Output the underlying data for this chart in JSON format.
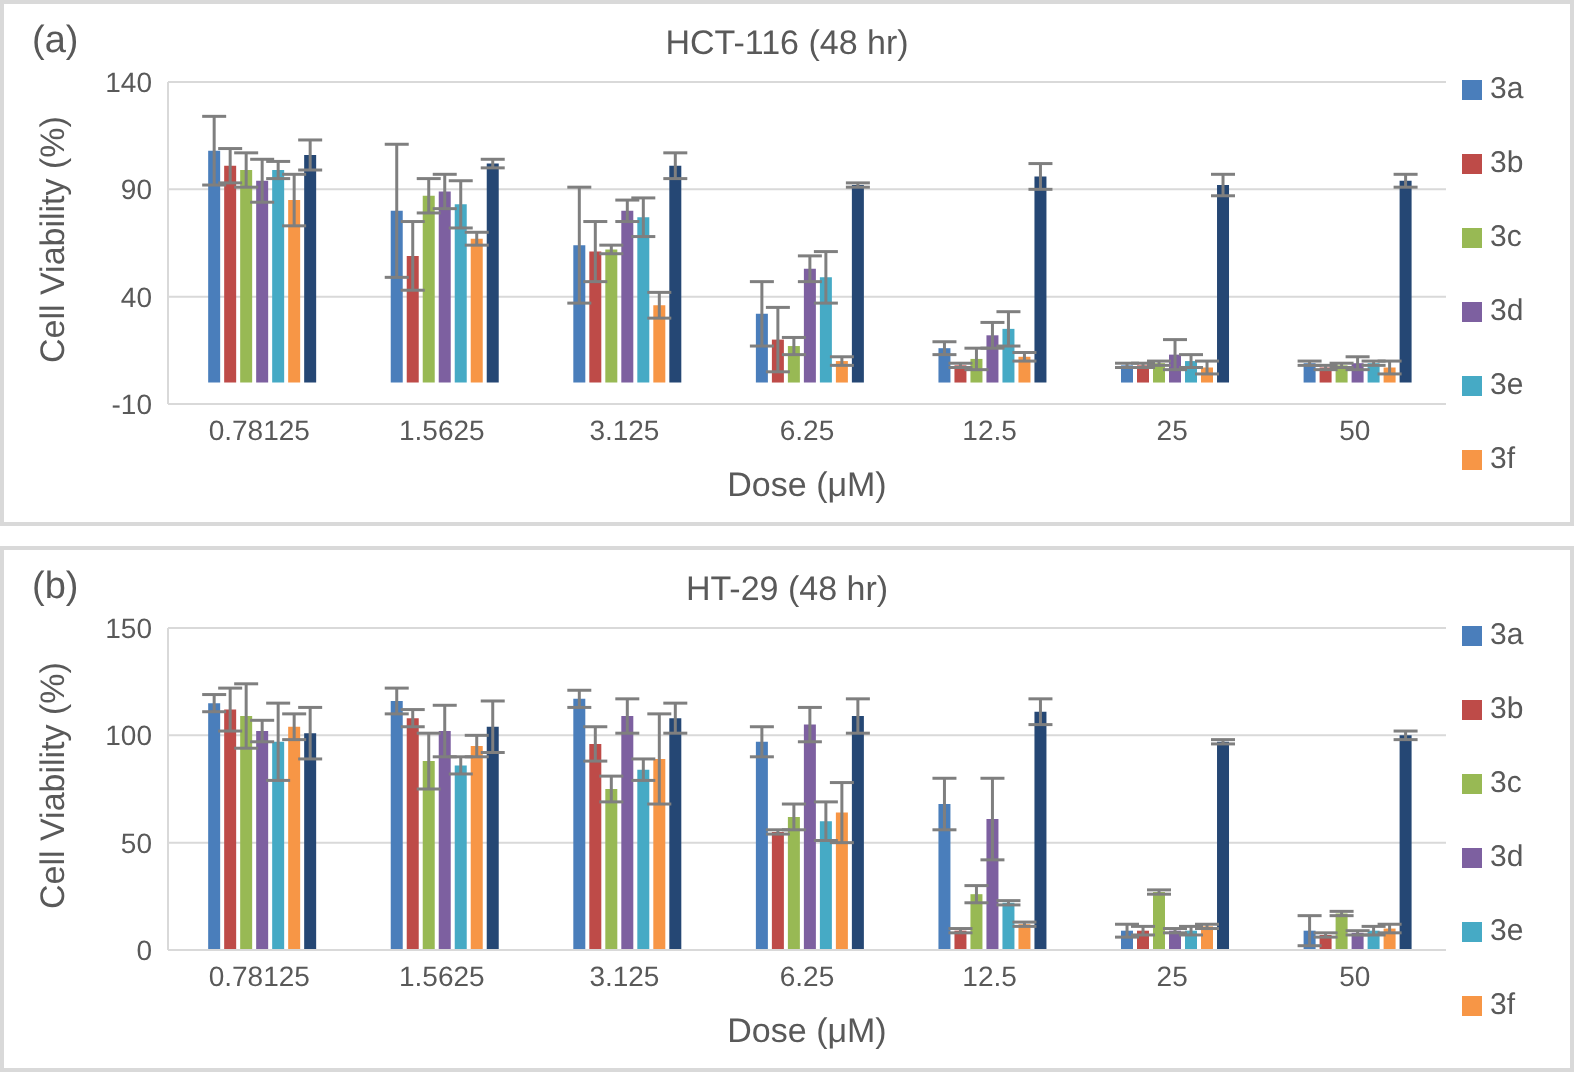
{
  "chart_data": [
    {
      "type": "bar",
      "title": "HCT-116 (48 hr)",
      "xlabel": "Dose (μM)",
      "ylabel": "Cell Viability (%)",
      "annotations": [
        "(a)"
      ],
      "categories": [
        "0.78125",
        "1.5625",
        "3.125",
        "6.25",
        "12.5",
        "25",
        "50"
      ],
      "ylim": [
        -10,
        140
      ],
      "yticks": [
        -10,
        40,
        90,
        140
      ],
      "grid": "y",
      "legend": "right",
      "series": [
        {
          "name": "3a",
          "color": "#4a7ebb",
          "values": [
            108,
            80,
            64,
            32,
            16,
            8,
            9
          ],
          "errors": [
            16,
            31,
            27,
            15,
            3,
            1,
            1
          ]
        },
        {
          "name": "3b",
          "color": "#be4b48",
          "values": [
            101,
            59,
            61,
            20,
            8,
            8,
            7
          ],
          "errors": [
            8,
            16,
            14,
            15,
            1,
            1,
            1
          ]
        },
        {
          "name": "3c",
          "color": "#98b954",
          "values": [
            99,
            87,
            62,
            17,
            11,
            9,
            8
          ],
          "errors": [
            8,
            8,
            2,
            4,
            5,
            1,
            1
          ]
        },
        {
          "name": "3d",
          "color": "#7d60a0",
          "values": [
            94,
            89,
            80,
            53,
            22,
            13,
            9
          ],
          "errors": [
            10,
            8,
            5,
            6,
            6,
            7,
            3
          ]
        },
        {
          "name": "3e",
          "color": "#46aac5",
          "values": [
            99,
            83,
            77,
            49,
            25,
            10,
            9
          ],
          "errors": [
            4,
            11,
            9,
            12,
            8,
            3,
            1
          ]
        },
        {
          "name": "3f",
          "color": "#f79646",
          "values": [
            85,
            67,
            36,
            10,
            12,
            7,
            7
          ],
          "errors": [
            12,
            3,
            6,
            2,
            2,
            3,
            3
          ]
        },
        {
          "color": "#254774",
          "values": [
            106,
            102,
            101,
            92,
            96,
            92,
            94
          ],
          "errors": [
            7,
            2,
            6,
            1,
            6,
            5,
            3
          ]
        }
      ]
    },
    {
      "type": "bar",
      "title": "HT-29 (48 hr)",
      "xlabel": "Dose (μM)",
      "ylabel": "Cell Viability (%)",
      "annotations": [
        "(b)"
      ],
      "categories": [
        "0.78125",
        "1.5625",
        "3.125",
        "6.25",
        "12.5",
        "25",
        "50"
      ],
      "ylim": [
        0,
        150
      ],
      "yticks": [
        0,
        50,
        100,
        150
      ],
      "grid": "y",
      "legend": "right",
      "series": [
        {
          "name": "3a",
          "color": "#4a7ebb",
          "values": [
            115,
            116,
            117,
            97,
            68,
            9,
            9
          ],
          "errors": [
            4,
            6,
            4,
            7,
            12,
            3,
            7
          ]
        },
        {
          "name": "3b",
          "color": "#be4b48",
          "values": [
            112,
            108,
            96,
            55,
            9,
            9,
            7
          ],
          "errors": [
            10,
            4,
            8,
            1,
            1,
            2,
            1
          ]
        },
        {
          "name": "3c",
          "color": "#98b954",
          "values": [
            109,
            88,
            75,
            62,
            26,
            27,
            17
          ],
          "errors": [
            15,
            13,
            6,
            6,
            4,
            1,
            1
          ]
        },
        {
          "name": "3d",
          "color": "#7d60a0",
          "values": [
            102,
            102,
            109,
            105,
            61,
            9,
            8
          ],
          "errors": [
            5,
            12,
            8,
            8,
            19,
            1,
            1
          ]
        },
        {
          "name": "3e",
          "color": "#46aac5",
          "values": [
            97,
            86,
            84,
            60,
            22,
            9,
            9
          ],
          "errors": [
            18,
            4,
            5,
            9,
            1,
            2,
            2
          ]
        },
        {
          "name": "3f",
          "color": "#f79646",
          "values": [
            104,
            95,
            89,
            64,
            12,
            11,
            10
          ],
          "errors": [
            6,
            5,
            21,
            14,
            1,
            1,
            2
          ]
        },
        {
          "color": "#254774",
          "values": [
            101,
            104,
            108,
            109,
            111,
            97,
            100
          ],
          "errors": [
            12,
            12,
            7,
            8,
            6,
            1,
            2
          ]
        }
      ]
    }
  ]
}
